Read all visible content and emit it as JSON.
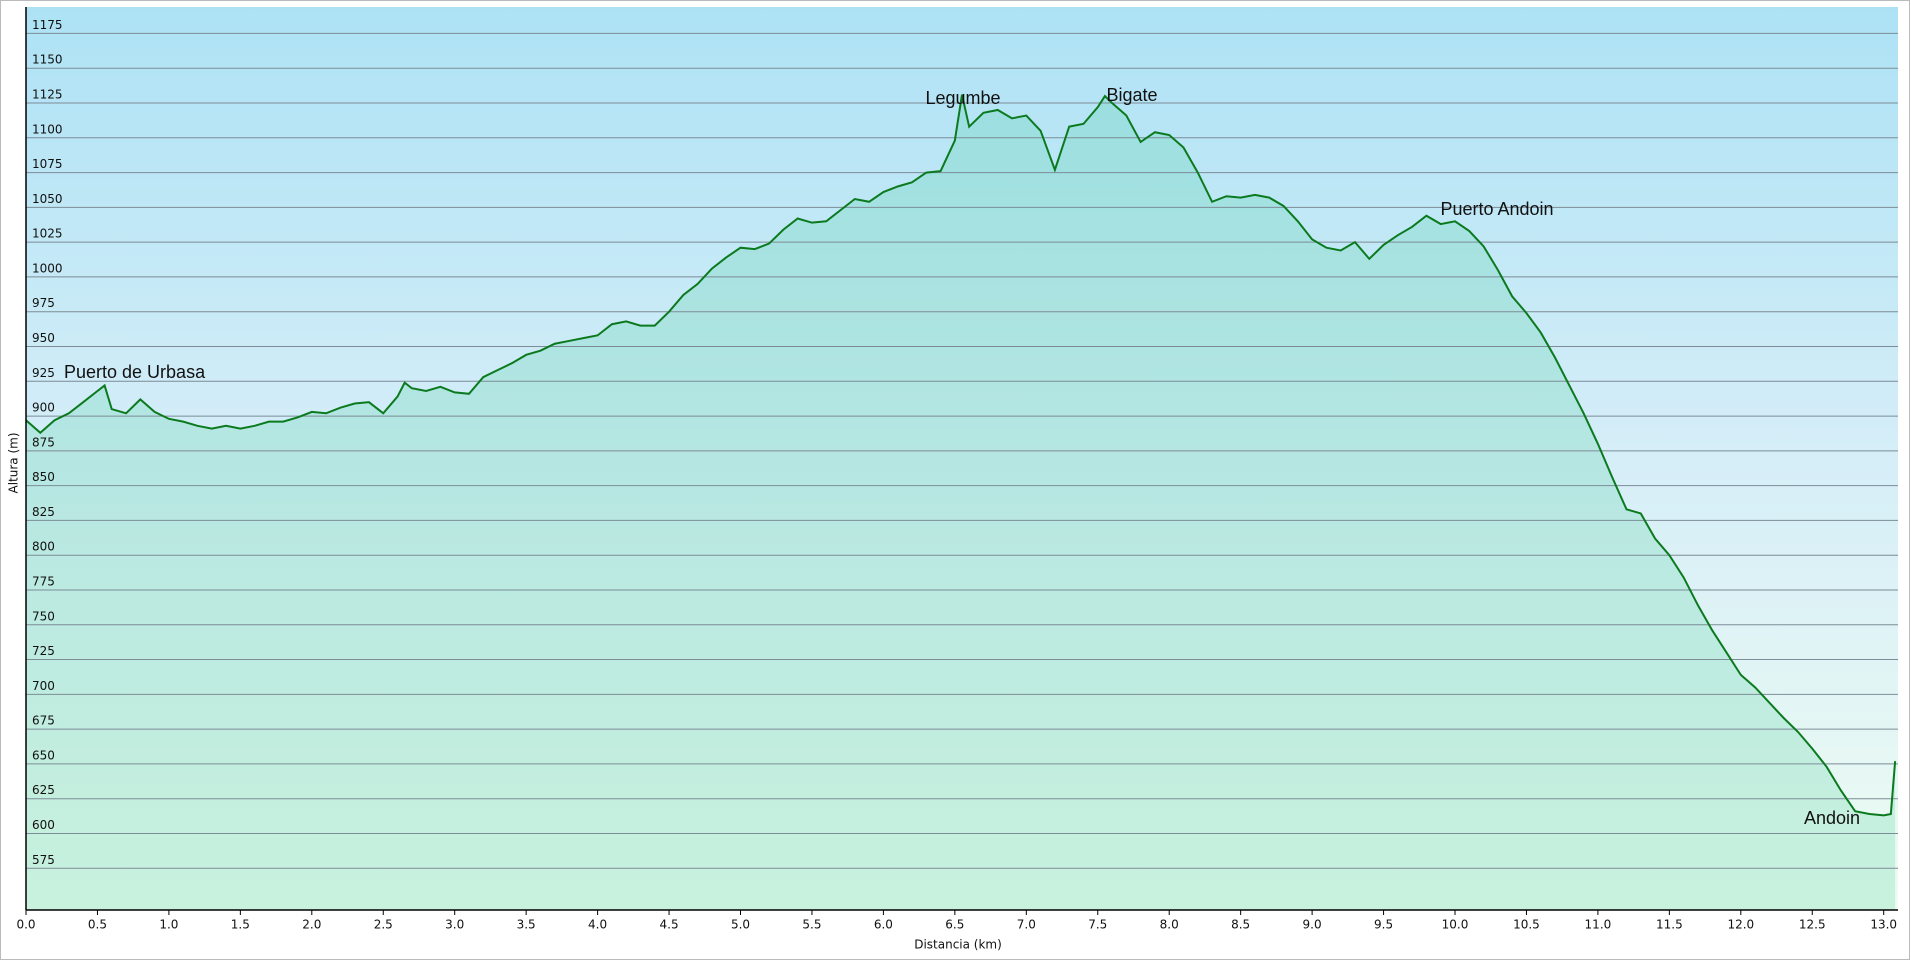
{
  "chart_data": {
    "type": "area",
    "y_label": "Altura (m)",
    "x_label": "Distancia  (km)",
    "annotations": [
      "Puerto de Urbasa",
      "Legumbe",
      "Bigate",
      "Puerto Andoin",
      "Andoin"
    ],
    "color": "#0b7a1e",
    "grid": true,
    "xlim": [
      0,
      13.1
    ],
    "ylim": [
      545,
      1194
    ],
    "xticks": [
      {
        "value": 0,
        "label": "0.0"
      },
      0.5,
      {
        "value": 1,
        "label": "1.0"
      },
      1.5,
      {
        "value": 2,
        "label": "2.0"
      },
      2.5,
      {
        "value": 3,
        "label": "3.0"
      },
      3.5,
      {
        "value": 4,
        "label": "4.0"
      },
      4.5,
      {
        "value": 5,
        "label": "5.0"
      },
      5.5,
      {
        "value": 6,
        "label": "6.0"
      },
      6.5,
      {
        "value": 7,
        "label": "7.0"
      },
      7.5,
      {
        "value": 8,
        "label": "8.0"
      },
      8.5,
      {
        "value": 9,
        "label": "9.0"
      },
      9.5,
      {
        "value": 10,
        "label": "10.0"
      },
      10.5,
      {
        "value": 11,
        "label": "11.0"
      },
      11.5,
      {
        "value": 12,
        "label": "12.0"
      },
      12.5,
      {
        "value": 13,
        "label": "13.0"
      }
    ],
    "yticks": [
      575,
      600,
      625,
      650,
      675,
      700,
      725,
      750,
      775,
      800,
      825,
      850,
      875,
      900,
      925,
      950,
      975,
      1000,
      1025,
      1050,
      1075,
      1100,
      1125,
      1150,
      1175
    ],
    "x": [
      0,
      0.1,
      0.2,
      0.3,
      0.4,
      0.5,
      0.55,
      0.6,
      0.7,
      0.8,
      0.9,
      1.0,
      1.1,
      1.2,
      1.3,
      1.4,
      1.5,
      1.6,
      1.7,
      1.8,
      1.9,
      2.0,
      2.1,
      2.2,
      2.3,
      2.4,
      2.5,
      2.6,
      2.65,
      2.7,
      2.8,
      2.9,
      3.0,
      3.1,
      3.2,
      3.3,
      3.4,
      3.5,
      3.6,
      3.7,
      3.8,
      3.9,
      4.0,
      4.1,
      4.2,
      4.3,
      4.4,
      4.5,
      4.6,
      4.7,
      4.8,
      4.9,
      5.0,
      5.1,
      5.2,
      5.3,
      5.4,
      5.5,
      5.6,
      5.7,
      5.8,
      5.9,
      6.0,
      6.1,
      6.2,
      6.3,
      6.4,
      6.5,
      6.55,
      6.6,
      6.7,
      6.8,
      6.9,
      7.0,
      7.1,
      7.2,
      7.3,
      7.4,
      7.5,
      7.55,
      7.6,
      7.7,
      7.8,
      7.9,
      8.0,
      8.1,
      8.2,
      8.3,
      8.4,
      8.5,
      8.6,
      8.7,
      8.8,
      8.9,
      9.0,
      9.1,
      9.2,
      9.3,
      9.4,
      9.5,
      9.6,
      9.7,
      9.8,
      9.9,
      10.0,
      10.1,
      10.2,
      10.3,
      10.4,
      10.5,
      10.6,
      10.7,
      10.8,
      10.9,
      11.0,
      11.1,
      11.2,
      11.3,
      11.4,
      11.5,
      11.6,
      11.7,
      11.8,
      11.9,
      12.0,
      12.1,
      12.2,
      12.3,
      12.4,
      12.5,
      12.6,
      12.7,
      12.8,
      12.9,
      13.0,
      13.05,
      13.08
    ],
    "values": [
      897,
      888,
      897,
      902,
      910,
      918,
      922,
      905,
      902,
      912,
      903,
      898,
      896,
      893,
      891,
      893,
      891,
      893,
      896,
      896,
      899,
      903,
      902,
      906,
      909,
      910,
      902,
      914,
      924,
      920,
      918,
      921,
      917,
      916,
      928,
      933,
      938,
      944,
      947,
      952,
      954,
      956,
      958,
      966,
      968,
      965,
      965,
      975,
      987,
      995,
      1006,
      1014,
      1021,
      1020,
      1024,
      1034,
      1042,
      1039,
      1040,
      1048,
      1056,
      1054,
      1061,
      1065,
      1068,
      1075,
      1076,
      1098,
      1131,
      1108,
      1118,
      1120,
      1114,
      1116,
      1105,
      1077,
      1108,
      1110,
      1122,
      1130,
      1125,
      1116,
      1097,
      1104,
      1102,
      1093,
      1075,
      1054,
      1058,
      1057,
      1059,
      1057,
      1051,
      1040,
      1027,
      1021,
      1019,
      1025,
      1013,
      1023,
      1030,
      1036,
      1044,
      1038,
      1040,
      1033,
      1022,
      1005,
      986,
      974,
      960,
      942,
      922,
      902,
      880,
      856,
      833,
      830,
      812,
      800,
      784,
      764,
      746,
      730,
      714,
      705,
      694,
      683,
      673,
      661,
      648,
      631,
      616,
      614,
      613,
      614,
      652
    ]
  }
}
